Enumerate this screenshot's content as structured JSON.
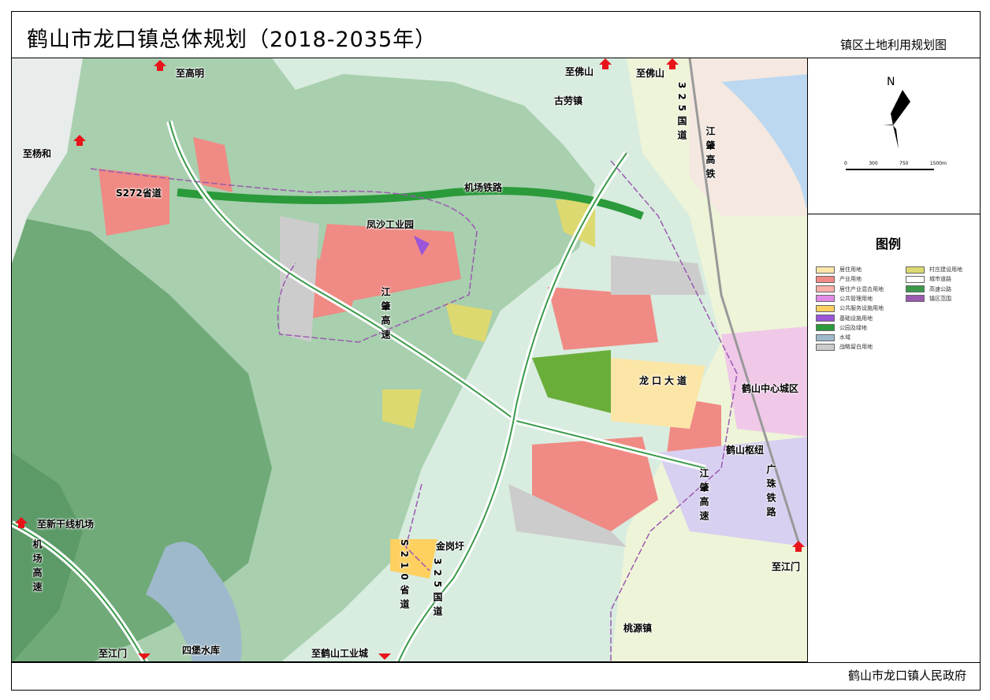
{
  "title": "鹤山市龙口镇总体规划（2018-2035年）",
  "subtitle": "镇区土地利用规划图",
  "footer": "鹤山市龙口镇人民政府",
  "north": {
    "label": "N",
    "scale": [
      "0",
      "300",
      "750",
      "1500m"
    ]
  },
  "legend": {
    "title": "图例",
    "items": [
      {
        "label": "居住用地",
        "color": "#fbe6a8"
      },
      {
        "label": "产业用地",
        "color": "#f08a84"
      },
      {
        "label": "居住产业混合用地",
        "color": "#f9b0a8"
      },
      {
        "label": "公共管理用地",
        "color": "#e28ce8"
      },
      {
        "label": "公共服务设施用地",
        "color": "#fdd060"
      },
      {
        "label": "基础设施用地",
        "color": "#9a55d8"
      },
      {
        "label": "公园及绿地",
        "color": "#2a9a3a"
      },
      {
        "label": "水域",
        "color": "#9fb9cc"
      },
      {
        "label": "战略留白用地",
        "color": "#cccccc"
      },
      {
        "label": "村庄建设用地",
        "color": "#dcd970"
      },
      {
        "label": "城市道路",
        "color": "#ffffff"
      },
      {
        "label": "高速公路",
        "color": "#3a9a4a"
      },
      {
        "label": "镇区范围",
        "color": "#9a5ab0"
      }
    ]
  },
  "map_labels": {
    "to_gaoming": "至高明",
    "to_yanghe": "至杨和",
    "s272": "S272省道",
    "to_foshan": "至佛山",
    "gulao": "古劳镇",
    "airport_rail": "机场铁路",
    "fengsha": "凤沙工业园",
    "jiangzhao_hw": "江肇高速",
    "longkou_ave": "龙口大道",
    "heshan_center": "鹤山中心城区",
    "heshan_hub": "鹤山枢纽",
    "jiangzhao_hw2": "江肇高速",
    "guangzhu_rail": "广珠铁路",
    "to_jiangmen_e": "至江门",
    "jiangzhao_hsr": "江肇高铁",
    "g325_n": "325国道",
    "to_xinganxian": "至新干线机场",
    "airport_hw": "机场高速",
    "jinganxu": "金岗圩",
    "s210": "S210省道",
    "g325_s": "325国道",
    "to_jiangmen_w": "至江门",
    "sibao": "四堡水库",
    "to_heshan_ind": "至鹤山工业城",
    "taoyuan": "桃源镇"
  }
}
